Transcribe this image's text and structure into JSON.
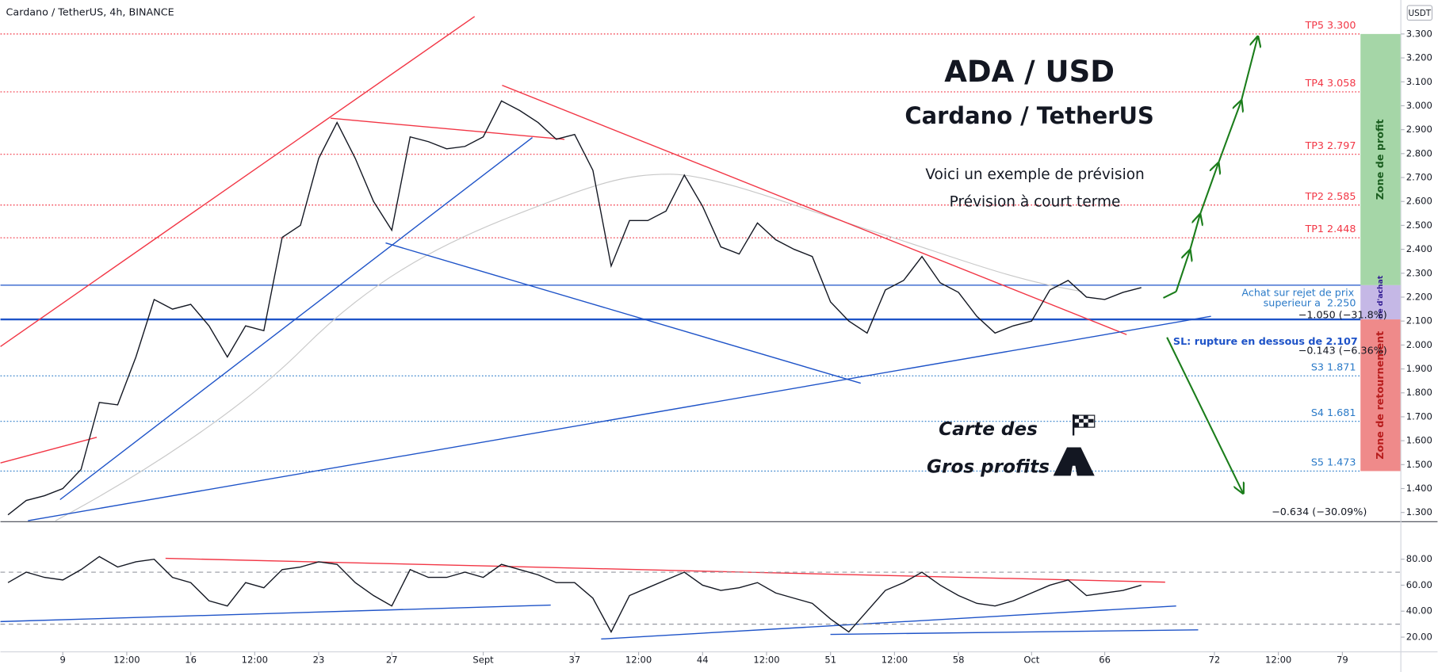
{
  "header": {
    "symbol": "Cardano / TetherUS, 4h, BINANCE",
    "currency": "USDT"
  },
  "chart_data": [
    {
      "type": "line",
      "title": "ADA / USD",
      "subtitle": "Cardano / TetherUS",
      "notes": [
        "Voici un exemple de prévision",
        "Prévision à court terme"
      ],
      "brand": [
        "Carte des",
        "Gros profits"
      ],
      "buy_note": [
        "Achat sur rejet de prix",
        "superieur a  2.250"
      ],
      "stop_note": "SL: rupture en dessous de 2.107",
      "measures": [
        "−1.050 (−31.8%)",
        "−0.143 (−6.36%)",
        "−0.634 (−30.09%)"
      ],
      "x": [
        6,
        7,
        8,
        9,
        10,
        11,
        12,
        13,
        14,
        15,
        16,
        17,
        18,
        19,
        20,
        21,
        22,
        23,
        24,
        25,
        26,
        27,
        28,
        29,
        30,
        31,
        32,
        33,
        34,
        35,
        36,
        37,
        38,
        39,
        40,
        41,
        42,
        43,
        44,
        45,
        46,
        47,
        48,
        49,
        50,
        51,
        52,
        53,
        54,
        55,
        56,
        57,
        58,
        59,
        60,
        61,
        62,
        63,
        64,
        65,
        66,
        67,
        68
      ],
      "values": [
        1.29,
        1.35,
        1.37,
        1.4,
        1.48,
        1.76,
        1.75,
        1.95,
        2.19,
        2.15,
        2.17,
        2.08,
        1.95,
        2.08,
        2.06,
        2.45,
        2.5,
        2.78,
        2.93,
        2.78,
        2.6,
        2.48,
        2.87,
        2.85,
        2.82,
        2.83,
        2.87,
        3.02,
        2.98,
        2.93,
        2.86,
        2.88,
        2.73,
        2.33,
        2.52,
        2.52,
        2.56,
        2.71,
        2.58,
        2.41,
        2.38,
        2.51,
        2.44,
        2.4,
        2.37,
        2.18,
        2.1,
        2.05,
        2.23,
        2.27,
        2.37,
        2.26,
        2.22,
        2.12,
        2.05,
        2.08,
        2.1,
        2.23,
        2.27,
        2.2,
        2.19,
        2.22,
        2.24
      ],
      "color": "#131722",
      "xlim": [
        5.59,
        82.2
      ],
      "xticks": [
        9,
        {
          "value": 12.5,
          "label": "12:00"
        },
        16,
        {
          "value": 19.5,
          "label": "12:00"
        },
        23,
        27,
        {
          "value": 32,
          "label": "Sept"
        },
        37,
        {
          "value": 40.5,
          "label": "12:00"
        },
        44,
        {
          "value": 47.5,
          "label": "12:00"
        },
        51,
        {
          "value": 54.5,
          "label": "12:00"
        },
        58,
        {
          "value": 62,
          "label": "Oct"
        },
        66,
        72,
        {
          "value": 75.5,
          "label": "12:00"
        },
        79
      ],
      "ylim": [
        1.2655,
        3.442
      ],
      "yticks": [
        {
          "value": 3.3,
          "label": "3.300"
        },
        {
          "value": 3.2,
          "label": "3.200"
        },
        {
          "value": 3.1,
          "label": "3.100"
        },
        {
          "value": 3.0,
          "label": "3.000"
        },
        {
          "value": 2.9,
          "label": "2.900"
        },
        {
          "value": 2.8,
          "label": "2.800"
        },
        {
          "value": 2.7,
          "label": "2.700"
        },
        {
          "value": 2.6,
          "label": "2.600"
        },
        {
          "value": 2.5,
          "label": "2.500"
        },
        {
          "value": 2.4,
          "label": "2.400"
        },
        {
          "value": 2.3,
          "label": "2.300"
        },
        {
          "value": 2.2,
          "label": "2.200"
        },
        {
          "value": 2.1,
          "label": "2.100"
        },
        {
          "value": 2.0,
          "label": "2.000"
        },
        {
          "value": 1.9,
          "label": "1.900"
        },
        {
          "value": 1.8,
          "label": "1.800"
        },
        {
          "value": 1.7,
          "label": "1.700"
        },
        {
          "value": 1.6,
          "label": "1.600"
        },
        {
          "value": 1.5,
          "label": "1.500"
        },
        {
          "value": 1.4,
          "label": "1.400"
        },
        {
          "value": 1.3,
          "label": "1.300"
        }
      ],
      "levels": [
        {
          "label": "TP5 3.300",
          "value": 3.3,
          "color": "#f23645",
          "style": "dotted"
        },
        {
          "label": "TP4 3.058",
          "value": 3.058,
          "color": "#f23645",
          "style": "dotted"
        },
        {
          "label": "TP3 2.797",
          "value": 2.797,
          "color": "#f23645",
          "style": "dotted"
        },
        {
          "label": "TP2 2.585",
          "value": 2.585,
          "color": "#f23645",
          "style": "dotted"
        },
        {
          "label": "TP1 2.448",
          "value": 2.448,
          "color": "#f23645",
          "style": "dotted"
        },
        {
          "value": 2.25,
          "color": "#1e53c8",
          "style": "solid"
        },
        {
          "value": 2.107,
          "color": "#1e53c8",
          "style": "thick"
        },
        {
          "label": "S3 1.871",
          "value": 1.871,
          "color": "#2a7ac8",
          "style": "dotted"
        },
        {
          "label": "S4 1.681",
          "value": 1.681,
          "color": "#2a7ac8",
          "style": "dotted"
        },
        {
          "label": "S5 1.473",
          "value": 1.473,
          "color": "#2a7ac8",
          "style": "dotted"
        }
      ],
      "zones": [
        {
          "label": "Zone de profit",
          "from": 3.3,
          "to": 2.25,
          "color": "#a5d6a7",
          "text_color": "#1b5e20"
        },
        {
          "label": "Zone d'achat",
          "from": 2.25,
          "to": 2.107,
          "color": "#c5b8e6",
          "text_color": "#311b92"
        },
        {
          "label": "Zone de retournement",
          "from": 2.107,
          "to": 1.473,
          "color": "#ef8a8a",
          "text_color": "#b71c1c"
        }
      ]
    },
    {
      "type": "line",
      "x": [
        6,
        7,
        8,
        9,
        10,
        11,
        12,
        13,
        14,
        15,
        16,
        17,
        18,
        19,
        20,
        21,
        22,
        23,
        24,
        25,
        26,
        27,
        28,
        29,
        30,
        31,
        32,
        33,
        34,
        35,
        36,
        37,
        38,
        39,
        40,
        41,
        42,
        43,
        44,
        45,
        46,
        47,
        48,
        49,
        50,
        51,
        52,
        53,
        54,
        55,
        56,
        57,
        58,
        59,
        60,
        61,
        62,
        63,
        64,
        65,
        66,
        67,
        68
      ],
      "values": [
        62,
        70,
        66,
        64,
        72,
        82,
        74,
        78,
        80,
        66,
        62,
        48,
        44,
        62,
        58,
        72,
        74,
        78,
        76,
        62,
        52,
        44,
        72,
        66,
        66,
        70,
        66,
        76,
        72,
        68,
        62,
        62,
        50,
        24,
        52,
        58,
        64,
        70,
        60,
        56,
        58,
        62,
        54,
        50,
        46,
        34,
        24,
        40,
        56,
        62,
        70,
        60,
        52,
        46,
        44,
        48,
        54,
        60,
        64,
        52,
        54,
        56,
        60
      ],
      "color": "#131722",
      "xlim": [
        5.59,
        82.2
      ],
      "ylim": [
        8.7,
        108.2
      ],
      "yticks": [
        {
          "value": 80,
          "label": "80.00"
        },
        {
          "value": 60,
          "label": "60.00"
        },
        {
          "value": 40,
          "label": "40.00"
        },
        {
          "value": 20,
          "label": "20.00"
        }
      ],
      "bands": [
        70,
        30
      ]
    }
  ]
}
